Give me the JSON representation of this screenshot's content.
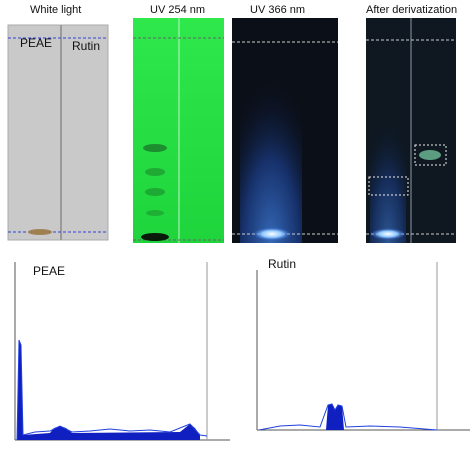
{
  "panels": [
    {
      "label": "White light",
      "lanes": [
        "PEAE",
        "Rutin"
      ]
    },
    {
      "label": "UV 254 nm"
    },
    {
      "label": "UV 366 nm"
    },
    {
      "label": "After derivatization"
    }
  ],
  "densitograms": [
    {
      "title": "PEAE"
    },
    {
      "title": "Rutin"
    }
  ]
}
